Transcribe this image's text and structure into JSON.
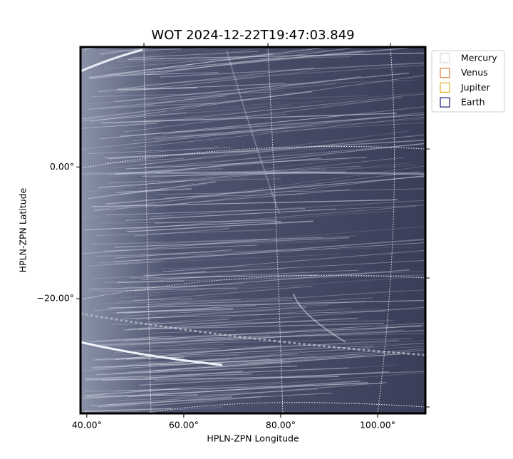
{
  "chart_data": {
    "type": "image",
    "title": "WOT 2024-12-22T19:47:03.849",
    "x_label": "HPLN-ZPN Longitude",
    "y_label": "HPLN-ZPN Latitude",
    "xlim": [
      38.7,
      109.85
    ],
    "ylim": [
      -37.4,
      18.2
    ],
    "xticks": [
      {
        "value": 40,
        "label": "40.00°"
      },
      {
        "value": 60,
        "label": "60.00°"
      },
      {
        "value": 80,
        "label": "80.00°"
      },
      {
        "value": 100,
        "label": "100.00°"
      }
    ],
    "yticks": [
      {
        "value": 0,
        "label": "0.00°"
      },
      {
        "value": -20,
        "label": "−20.00°"
      }
    ],
    "grid": true,
    "legend": "upper right",
    "series": [
      {
        "name": "Mercury",
        "color": "#d9d9d9"
      },
      {
        "name": "Venus",
        "color": "#e07b39"
      },
      {
        "name": "Jupiter",
        "color": "#e0b020"
      },
      {
        "name": "Earth",
        "color": "#1a1a7a"
      }
    ]
  }
}
